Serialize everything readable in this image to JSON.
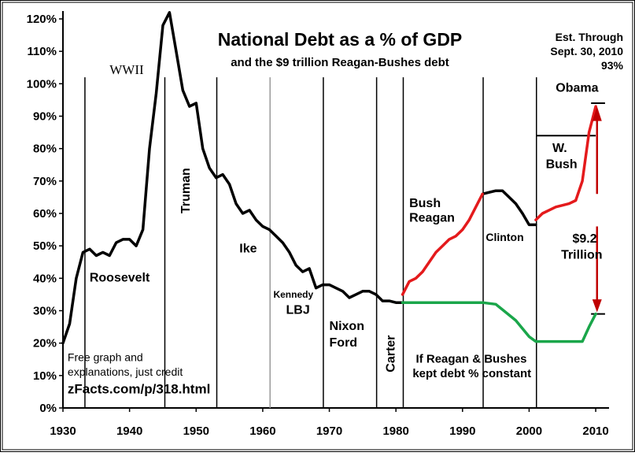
{
  "chart_data": {
    "type": "line",
    "title": "National Debt as a % of GDP",
    "subtitle": "and the $9 trillion Reagan-Bushes debt",
    "estimate_note": [
      "Est. Through",
      "Sept. 30, 2010",
      "93%"
    ],
    "xlabel": "",
    "ylabel": "",
    "xlim": [
      1930,
      2012
    ],
    "ylim": [
      0,
      122
    ],
    "x_ticks": [
      1930,
      1940,
      1950,
      1960,
      1970,
      1980,
      1990,
      2000,
      2010
    ],
    "y_ticks": [
      "0%",
      "10%",
      "20%",
      "30%",
      "40%",
      "50%",
      "60%",
      "70%",
      "80%",
      "90%",
      "100%",
      "110%",
      "120%"
    ],
    "y_tick_values": [
      0,
      10,
      20,
      30,
      40,
      50,
      60,
      70,
      80,
      90,
      100,
      110,
      120
    ],
    "grid": false,
    "legend": "none",
    "president_dividers": [
      1933.3,
      1945.3,
      1953.1,
      1961.1,
      1969.1,
      1977.1,
      1981.1,
      1993.1,
      2001.1
    ],
    "series": [
      {
        "color": "#000000",
        "x": [
          1930,
          1931,
          1932,
          1933,
          1934,
          1935,
          1936,
          1937,
          1938,
          1939,
          1940,
          1941,
          1942,
          1943,
          1944,
          1945,
          1946,
          1947,
          1948,
          1949,
          1950,
          1951,
          1952,
          1953,
          1954,
          1955,
          1956,
          1957,
          1958,
          1959,
          1960,
          1961,
          1962,
          1963,
          1964,
          1965,
          1966,
          1967,
          1968,
          1969,
          1970,
          1971,
          1972,
          1973,
          1974,
          1975,
          1976,
          1977,
          1978,
          1979,
          1980,
          1981
        ],
        "values": [
          20,
          26,
          40,
          48,
          49,
          47,
          48,
          47,
          51,
          52,
          52,
          50,
          55,
          80,
          97,
          118,
          122,
          110,
          98,
          93,
          94,
          80,
          74,
          71,
          72,
          69,
          63,
          60,
          61,
          58,
          56,
          55,
          53,
          51,
          48,
          44,
          42,
          43,
          37,
          38,
          38,
          37,
          36,
          34,
          35,
          36,
          36,
          35,
          33,
          33,
          32.5,
          32.5
        ]
      },
      {
        "color": "#000000",
        "x": [
          1993,
          1994,
          1995,
          1996,
          1997,
          1998,
          1999,
          2000,
          2001
        ],
        "values": [
          66,
          66.5,
          67,
          67,
          65,
          63,
          60,
          56.5,
          56.5
        ]
      },
      {
        "color": "#e41a1c",
        "x": [
          1981,
          1982,
          1983,
          1984,
          1985,
          1986,
          1987,
          1988,
          1989,
          1990,
          1991,
          1992,
          1993
        ],
        "values": [
          35,
          39,
          40,
          42,
          45,
          48,
          50,
          52,
          53,
          55,
          58,
          62,
          66
        ]
      },
      {
        "color": "#e41a1c",
        "x": [
          2001,
          2002,
          2003,
          2004,
          2005,
          2006,
          2007,
          2008,
          2009,
          2010
        ],
        "values": [
          58,
          60,
          61,
          62,
          62.5,
          63,
          64,
          70,
          85,
          93
        ]
      },
      {
        "color": "#1aa64a",
        "x": [
          1981,
          1992,
          1993,
          1995,
          1998,
          2000,
          2001,
          2003,
          2006,
          2008,
          2009,
          2010
        ],
        "values": [
          32.5,
          32.5,
          32.5,
          32,
          27,
          22,
          20.5,
          20.5,
          20.5,
          20.5,
          25,
          29
        ]
      }
    ],
    "labels": [
      {
        "text": "WWII",
        "x": 1937,
        "y": 103,
        "size": 17,
        "serif": true,
        "bold": false
      },
      {
        "text": "Roosevelt",
        "x": 1934,
        "y": 39,
        "size": 16,
        "bold": true
      },
      {
        "text": "Truman",
        "x": 1949,
        "y": 60,
        "size": 16,
        "bold": true,
        "rotate": -90
      },
      {
        "text": "Ike",
        "x": 1956.5,
        "y": 48,
        "size": 16,
        "bold": true
      },
      {
        "text": "Kennedy",
        "x": 1961.6,
        "y": 34,
        "size": 12,
        "bold": true
      },
      {
        "text": "LBJ",
        "x": 1963.5,
        "y": 29,
        "size": 16,
        "bold": true
      },
      {
        "text": "Nixon",
        "x": 1970,
        "y": 24,
        "size": 16,
        "bold": true
      },
      {
        "text": "Ford",
        "x": 1970,
        "y": 19,
        "size": 16,
        "bold": true
      },
      {
        "text": "Carter",
        "x": 1979.8,
        "y": 11,
        "size": 16,
        "bold": true,
        "rotate": -90
      },
      {
        "text": "Bush",
        "x": 1982,
        "y": 62,
        "size": 16,
        "bold": true
      },
      {
        "text": "Reagan",
        "x": 1982,
        "y": 57.5,
        "size": 16,
        "bold": true
      },
      {
        "text": "Clinton",
        "x": 1993.5,
        "y": 51.5,
        "size": 14,
        "bold": true
      },
      {
        "text": "W.",
        "x": 2003.5,
        "y": 79,
        "size": 16,
        "bold": true
      },
      {
        "text": "Bush",
        "x": 2002.5,
        "y": 74,
        "size": 16,
        "bold": true
      },
      {
        "text": "Obama",
        "x": 2004,
        "y": 97.5,
        "size": 16,
        "bold": true
      },
      {
        "text": "$9.2",
        "x": 2006.5,
        "y": 51,
        "size": 16,
        "bold": true
      },
      {
        "text": "Trillion",
        "x": 2004.8,
        "y": 46,
        "size": 16,
        "bold": true
      },
      {
        "text": "If Reagan & Bushes",
        "x": 1983,
        "y": 14,
        "size": 15,
        "bold": true
      },
      {
        "text": "kept debt % constant",
        "x": 1982.5,
        "y": 9.5,
        "size": 15,
        "bold": true
      },
      {
        "text": "Free graph and",
        "x": 1930.7,
        "y": 14.5,
        "size": 14,
        "bold": false
      },
      {
        "text": "explanations, just credit",
        "x": 1930.7,
        "y": 10,
        "size": 14,
        "bold": false
      },
      {
        "text": "zFacts.com/p/318.html",
        "x": 1930.7,
        "y": 4.5,
        "size": 17,
        "bold": true
      }
    ]
  }
}
